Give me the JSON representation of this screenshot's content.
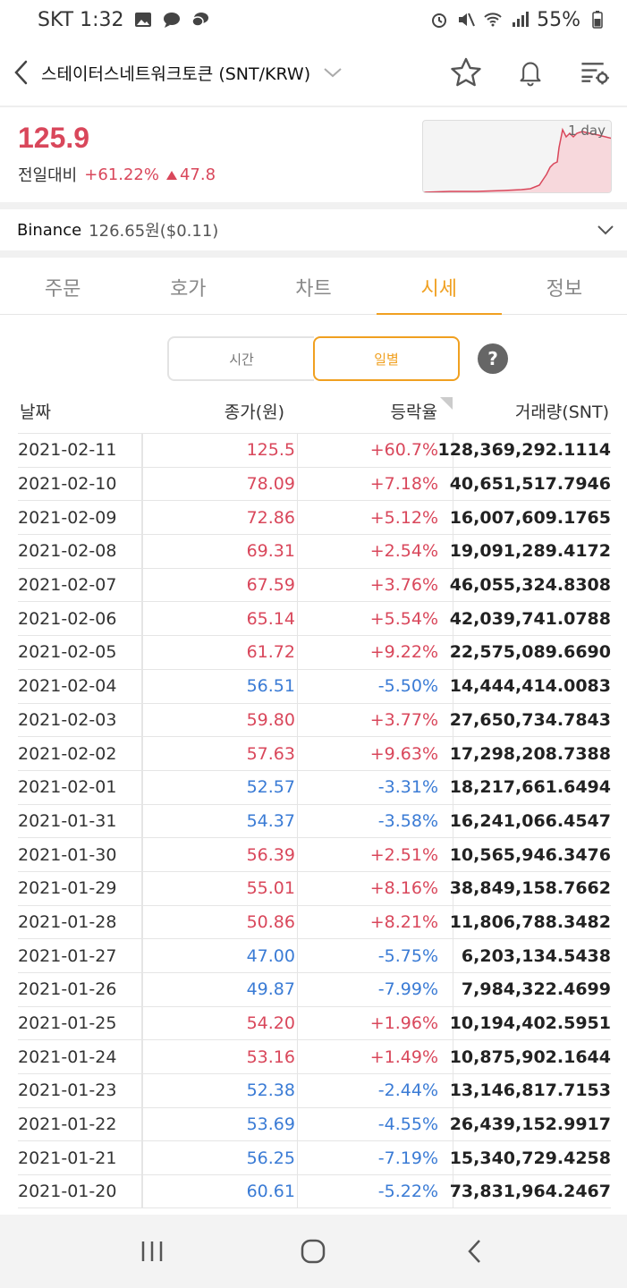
{
  "status_bar": {
    "carrier_time": "SKT 1:32",
    "battery": "55%"
  },
  "header": {
    "title": "스테이터스네트워크토큰 (SNT/KRW)"
  },
  "price": {
    "current": "125.9",
    "change_label": "전일대비",
    "change_rate": "+61.22%",
    "change_amount": "47.8",
    "chart_label": "1 day"
  },
  "binance": {
    "name": "Binance",
    "price": "126.65원($0.11)"
  },
  "tabs": [
    "주문",
    "호가",
    "차트",
    "시세",
    "정보"
  ],
  "active_tab": "시세",
  "toggle": {
    "time": "시간",
    "daily": "일별",
    "help": "?"
  },
  "table": {
    "headers": {
      "date": "날짜",
      "close": "종가(원)",
      "rate": "등락율",
      "volume": "거래량(SNT)"
    },
    "rows": [
      {
        "date": "2021-02-11",
        "close": "125.5",
        "rate": "+60.7%",
        "volume": "128,369,292.1114",
        "dir": "up"
      },
      {
        "date": "2021-02-10",
        "close": "78.09",
        "rate": "+7.18%",
        "volume": "40,651,517.7946",
        "dir": "up"
      },
      {
        "date": "2021-02-09",
        "close": "72.86",
        "rate": "+5.12%",
        "volume": "16,007,609.1765",
        "dir": "up"
      },
      {
        "date": "2021-02-08",
        "close": "69.31",
        "rate": "+2.54%",
        "volume": "19,091,289.4172",
        "dir": "up"
      },
      {
        "date": "2021-02-07",
        "close": "67.59",
        "rate": "+3.76%",
        "volume": "46,055,324.8308",
        "dir": "up"
      },
      {
        "date": "2021-02-06",
        "close": "65.14",
        "rate": "+5.54%",
        "volume": "42,039,741.0788",
        "dir": "up"
      },
      {
        "date": "2021-02-05",
        "close": "61.72",
        "rate": "+9.22%",
        "volume": "22,575,089.6690",
        "dir": "up"
      },
      {
        "date": "2021-02-04",
        "close": "56.51",
        "rate": "-5.50%",
        "volume": "14,444,414.0083",
        "dir": "down"
      },
      {
        "date": "2021-02-03",
        "close": "59.80",
        "rate": "+3.77%",
        "volume": "27,650,734.7843",
        "dir": "up"
      },
      {
        "date": "2021-02-02",
        "close": "57.63",
        "rate": "+9.63%",
        "volume": "17,298,208.7388",
        "dir": "up"
      },
      {
        "date": "2021-02-01",
        "close": "52.57",
        "rate": "-3.31%",
        "volume": "18,217,661.6494",
        "dir": "down"
      },
      {
        "date": "2021-01-31",
        "close": "54.37",
        "rate": "-3.58%",
        "volume": "16,241,066.4547",
        "dir": "down"
      },
      {
        "date": "2021-01-30",
        "close": "56.39",
        "rate": "+2.51%",
        "volume": "10,565,946.3476",
        "dir": "up"
      },
      {
        "date": "2021-01-29",
        "close": "55.01",
        "rate": "+8.16%",
        "volume": "38,849,158.7662",
        "dir": "up"
      },
      {
        "date": "2021-01-28",
        "close": "50.86",
        "rate": "+8.21%",
        "volume": "11,806,788.3482",
        "dir": "up"
      },
      {
        "date": "2021-01-27",
        "close": "47.00",
        "rate": "-5.75%",
        "volume": "6,203,134.5438",
        "dir": "down"
      },
      {
        "date": "2021-01-26",
        "close": "49.87",
        "rate": "-7.99%",
        "volume": "7,984,322.4699",
        "dir": "down"
      },
      {
        "date": "2021-01-25",
        "close": "54.20",
        "rate": "+1.96%",
        "volume": "10,194,402.5951",
        "dir": "up"
      },
      {
        "date": "2021-01-24",
        "close": "53.16",
        "rate": "+1.49%",
        "volume": "10,875,902.1644",
        "dir": "up"
      },
      {
        "date": "2021-01-23",
        "close": "52.38",
        "rate": "-2.44%",
        "volume": "13,146,817.7153",
        "dir": "down"
      },
      {
        "date": "2021-01-22",
        "close": "53.69",
        "rate": "-4.55%",
        "volume": "26,439,152.9917",
        "dir": "down"
      },
      {
        "date": "2021-01-21",
        "close": "56.25",
        "rate": "-7.19%",
        "volume": "15,340,729.4258",
        "dir": "down"
      },
      {
        "date": "2021-01-20",
        "close": "60.61",
        "rate": "-5.22%",
        "volume": "73,831,964.2467",
        "dir": "down"
      }
    ]
  },
  "colors": {
    "up": "#d9475b",
    "down": "#3a7bd5",
    "accent": "#f0a020"
  }
}
